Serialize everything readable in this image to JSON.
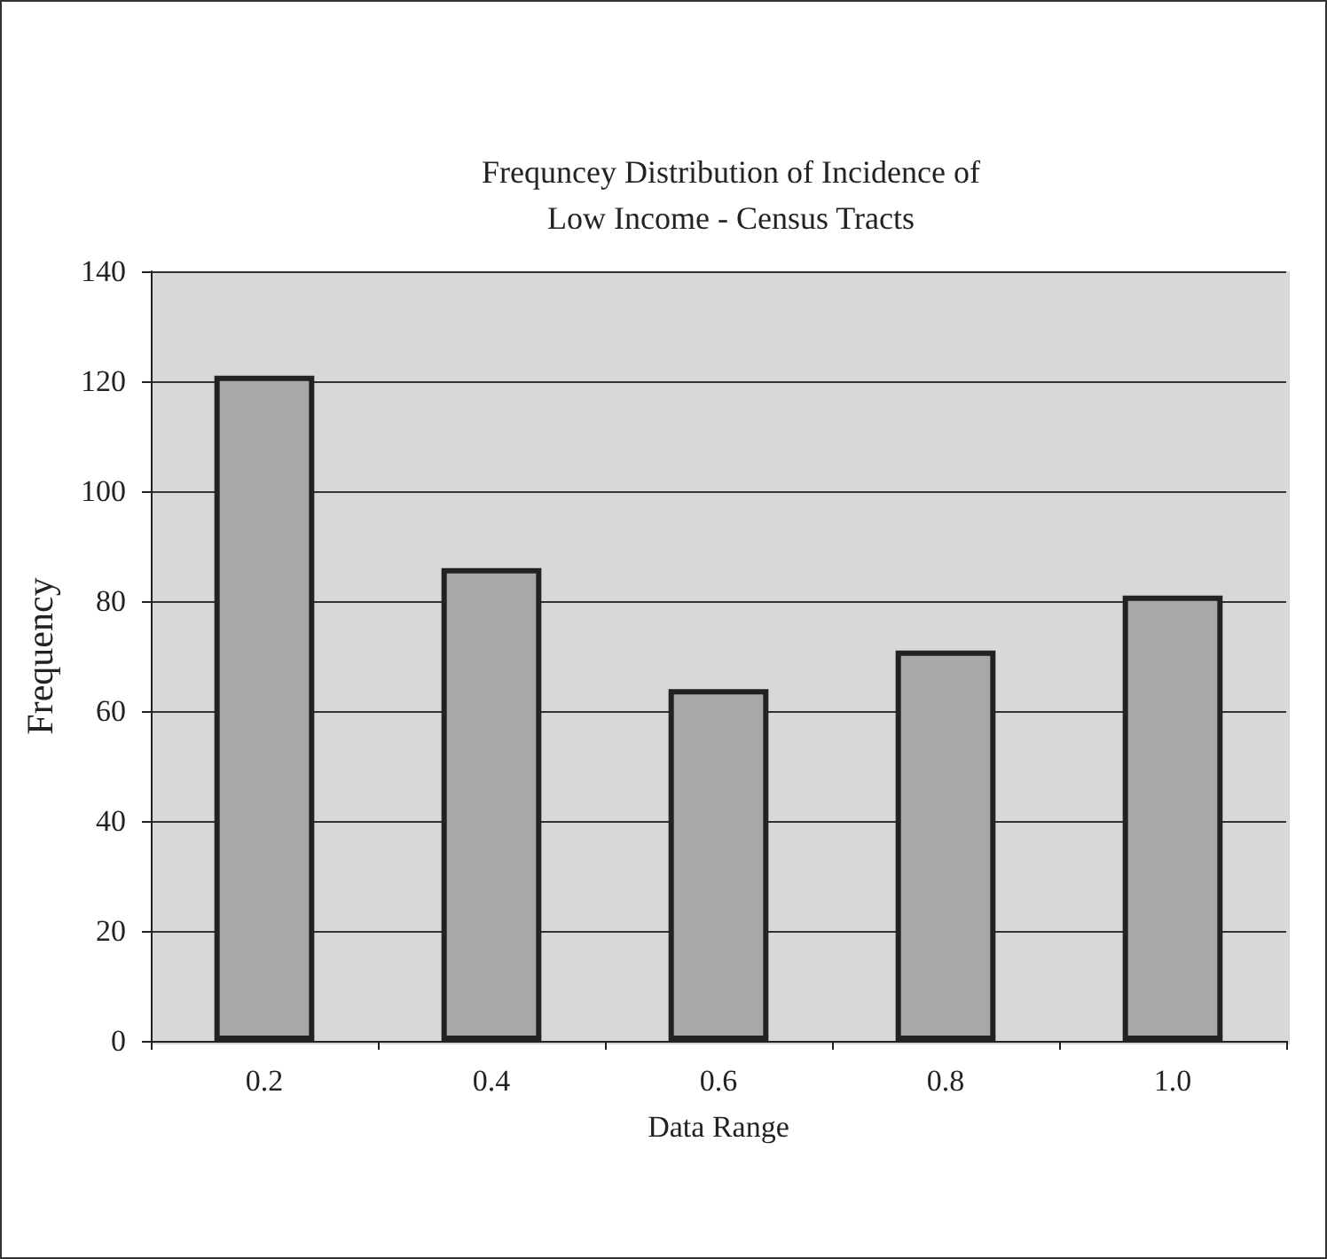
{
  "chart_data": {
    "type": "bar",
    "title": "Frequncey Distribution of Incidence of\nLow Income - Census Tracts",
    "xlabel": "Data Range",
    "ylabel": "Frequency",
    "categories": [
      "0.2",
      "0.4",
      "0.6",
      "0.8",
      "1.0"
    ],
    "values": [
      121,
      86,
      64,
      71,
      81
    ],
    "color": "#a8a8a8",
    "ylim": [
      0,
      140
    ],
    "yticks": [
      0,
      20,
      40,
      60,
      80,
      100,
      120,
      140
    ],
    "grid": "y"
  }
}
